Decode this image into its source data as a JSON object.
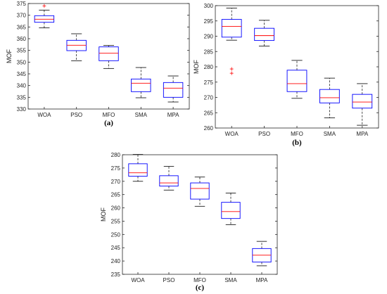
{
  "chart_data": [
    {
      "type": "box",
      "panel_label": "(a)",
      "ylabel": "MOF",
      "ylim": [
        330,
        375
      ],
      "yticks": [
        330,
        335,
        340,
        345,
        350,
        355,
        360,
        365,
        370,
        375
      ],
      "categories": [
        "WOA",
        "PSO",
        "MFO",
        "SMA",
        "MPA"
      ],
      "boxes": [
        {
          "min": 364.6,
          "q1": 367.0,
          "median": 368.3,
          "q3": 369.8,
          "max": 372.2,
          "outliers": [
            374.0
          ]
        },
        {
          "min": 350.6,
          "q1": 354.9,
          "median": 357.2,
          "q3": 359.3,
          "max": 362.1,
          "outliers": []
        },
        {
          "min": 347.3,
          "q1": 350.6,
          "median": 353.8,
          "q3": 356.5,
          "max": 357.1,
          "outliers": []
        },
        {
          "min": 334.8,
          "q1": 337.4,
          "median": 341.0,
          "q3": 342.8,
          "max": 347.7,
          "outliers": []
        },
        {
          "min": 333.0,
          "q1": 335.0,
          "median": 338.9,
          "q3": 341.3,
          "max": 344.1,
          "outliers": []
        }
      ]
    },
    {
      "type": "box",
      "panel_label": "(b)",
      "ylabel": "MOF",
      "ylim": [
        260,
        300
      ],
      "yticks": [
        260,
        265,
        270,
        275,
        280,
        285,
        290,
        295,
        300
      ],
      "categories": [
        "WOA",
        "PSO",
        "MFO",
        "SMA",
        "MPA"
      ],
      "boxes": [
        {
          "min": 288.7,
          "q1": 289.7,
          "median": 293.2,
          "q3": 295.5,
          "max": 299.2,
          "outliers": [
            279.3,
            277.9
          ]
        },
        {
          "min": 286.8,
          "q1": 288.6,
          "median": 290.2,
          "q3": 292.6,
          "max": 295.2,
          "outliers": []
        },
        {
          "min": 269.7,
          "q1": 271.9,
          "median": 274.5,
          "q3": 278.9,
          "max": 282.1,
          "outliers": []
        },
        {
          "min": 263.3,
          "q1": 268.2,
          "median": 269.9,
          "q3": 272.6,
          "max": 276.3,
          "outliers": []
        },
        {
          "min": 260.9,
          "q1": 266.5,
          "median": 268.5,
          "q3": 271.0,
          "max": 274.5,
          "outliers": []
        }
      ]
    },
    {
      "type": "box",
      "panel_label": "(c)",
      "ylabel": "MOF",
      "ylim": [
        235,
        280
      ],
      "yticks": [
        235,
        240,
        245,
        250,
        255,
        260,
        265,
        270,
        275,
        280
      ],
      "categories": [
        "WOA",
        "PSO",
        "MFO",
        "SMA",
        "MPA"
      ],
      "boxes": [
        {
          "min": 270.0,
          "q1": 271.9,
          "median": 273.2,
          "q3": 276.6,
          "max": 280.1,
          "outliers": []
        },
        {
          "min": 266.7,
          "q1": 268.2,
          "median": 269.4,
          "q3": 272.1,
          "max": 275.6,
          "outliers": []
        },
        {
          "min": 260.6,
          "q1": 263.3,
          "median": 267.3,
          "q3": 269.4,
          "max": 271.6,
          "outliers": []
        },
        {
          "min": 253.7,
          "q1": 256.0,
          "median": 258.6,
          "q3": 262.1,
          "max": 265.6,
          "outliers": []
        },
        {
          "min": 238.2,
          "q1": 239.6,
          "median": 242.2,
          "q3": 244.7,
          "max": 247.4,
          "outliers": []
        }
      ]
    }
  ],
  "colors": {
    "box": "#0000ff",
    "median": "#ff0000",
    "outlier": "#ff0000",
    "whisker": "#000000",
    "axis": "#262626",
    "grid": "#dddddd"
  }
}
